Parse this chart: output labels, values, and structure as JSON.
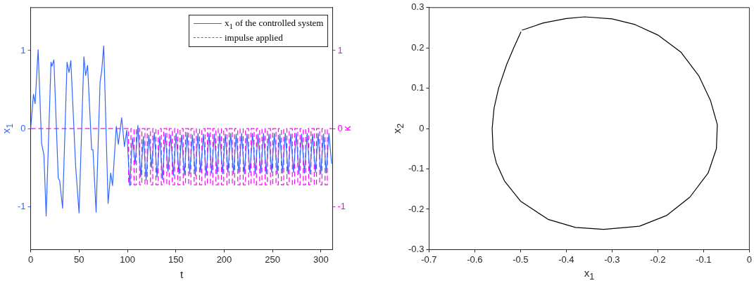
{
  "chart_data": [
    {
      "type": "line",
      "xlabel": "t",
      "ylabel": "x$_{1}$",
      "y2label": "κ",
      "legend": "top right",
      "xlim": [
        0,
        312
      ],
      "xticks": [
        0,
        50,
        100,
        150,
        200,
        250,
        300
      ],
      "ylim": [
        -1.55,
        1.55
      ],
      "yticks": [
        -1,
        0,
        1
      ],
      "y2lim": [
        -1.55,
        1.55
      ],
      "y2ticks": [
        -1,
        0,
        1
      ],
      "series": [
        {
          "name": "x$_{1}$ of the controlled system",
          "color": "#3366ff",
          "line_style": "solid",
          "x": [
            0,
            2.9,
            4.6,
            7.7,
            11.3,
            13.7,
            16,
            21,
            22,
            24,
            28.5,
            30,
            33,
            37.6,
            39.6,
            41.5,
            46.5,
            50,
            55,
            56.8,
            58.8,
            63,
            64.4,
            67.6,
            71.7,
            73.4,
            75.5,
            80,
            82.7,
            84.6,
            88.5,
            90.6,
            94,
            96.9,
            99.3,
            102.4,
            105.2,
            108.0,
            110.8,
            113.7,
            116.5,
            119.3,
            122.1,
            125.0,
            127.8,
            130.6,
            133.4,
            136.2,
            139.0,
            141.9,
            144.7,
            147.5,
            150.3,
            153.2,
            156.0,
            158.8,
            161.6,
            164.4,
            167.2,
            170.1,
            172.9,
            175.7,
            178.5,
            181.4,
            184.2,
            187.0,
            189.8,
            192.6,
            195.4,
            198.3,
            201.1,
            203.9,
            206.7,
            209.6,
            212.4,
            215.2,
            218.0,
            220.8,
            223.6,
            226.5,
            229.3,
            232.1,
            234.9,
            237.8,
            240.6,
            243.4,
            246.2,
            249.0,
            251.8,
            254.7,
            257.5,
            260.3,
            263.1,
            266.0,
            268.8,
            271.6,
            274.4,
            277.2,
            280.0,
            282.9,
            285.7,
            288.5,
            291.3,
            294.2,
            297.0,
            299.8,
            302.6,
            305.4,
            308.2,
            311
          ],
          "values": [
            0,
            0.44,
            0.32,
            1.01,
            -0.19,
            -0.34,
            -1.12,
            0.85,
            0.8,
            0.88,
            -0.63,
            -0.67,
            -1.02,
            0.85,
            0.72,
            0.87,
            -0.49,
            -1.08,
            0.92,
            0.68,
            0.81,
            -0.27,
            -0.27,
            -1.07,
            0.59,
            0.74,
            1.06,
            -0.96,
            -0.57,
            -0.73,
            0.03,
            -0.2,
            0.14,
            -0.23,
            -0.02,
            -0.73,
            -0.12,
            -0.45,
            0.04,
            -0.62,
            -0.1,
            -0.66,
            -0.08,
            -0.5,
            -0.05,
            -0.62,
            -0.1,
            -0.65,
            -0.06,
            -0.55,
            -0.08,
            -0.6,
            -0.06,
            -0.58,
            -0.08,
            -0.6,
            -0.05,
            -0.58,
            -0.08,
            -0.6,
            -0.06,
            -0.56,
            -0.07,
            -0.6,
            -0.06,
            -0.57,
            -0.07,
            -0.58,
            -0.06,
            -0.58,
            -0.07,
            -0.56,
            -0.06,
            -0.58,
            -0.07,
            -0.57,
            -0.06,
            -0.58,
            -0.07,
            -0.56,
            -0.06,
            -0.58,
            -0.07,
            -0.57,
            -0.06,
            -0.58,
            -0.07,
            -0.56,
            -0.06,
            -0.58,
            -0.07,
            -0.57,
            -0.06,
            -0.58,
            -0.07,
            -0.56,
            -0.06,
            -0.58,
            -0.07,
            -0.57,
            -0.06,
            -0.58,
            -0.07,
            -0.56,
            -0.06,
            -0.58,
            -0.07,
            -0.57,
            -0.06,
            -0.45
          ]
        },
        {
          "name": "impulse applied",
          "color": "#ff00ff",
          "axis": "y2",
          "line_style": "dashed",
          "x": [
            0,
            101.2,
            101.2,
            103.6,
            103.6,
            106.8,
            106.8,
            109.2,
            109.2,
            112.5,
            112.5,
            114.9,
            114.9,
            118.1,
            118.1,
            120.5,
            120.5,
            123.8,
            123.8,
            126.2,
            126.2,
            129.4,
            129.4,
            131.8,
            131.8,
            135.0,
            135.0,
            137.4,
            137.4,
            140.7,
            140.7,
            143.1,
            143.1,
            146.3,
            146.3,
            148.7,
            148.7,
            152.0,
            152.0,
            154.4,
            154.4,
            157.6,
            157.6,
            160.0,
            160.0,
            163.2,
            163.2,
            165.6,
            165.6,
            168.9,
            168.9,
            171.3,
            171.3,
            174.5,
            174.5,
            176.9,
            176.9,
            180.2,
            180.2,
            182.6,
            182.6,
            185.8,
            185.8,
            188.2,
            188.2,
            191.4,
            191.4,
            193.8,
            193.8,
            197.1,
            197.1,
            199.5,
            199.5,
            202.7,
            202.7,
            205.1,
            205.1,
            208.4,
            208.4,
            210.8,
            210.8,
            214.0,
            214.0,
            216.4,
            216.4,
            219.6,
            219.6,
            222.0,
            222.0,
            225.3,
            225.3,
            227.7,
            227.7,
            230.9,
            230.9,
            233.3,
            233.3,
            236.6,
            236.6,
            239.0,
            239.0,
            242.2,
            242.2,
            244.6,
            244.6,
            247.8,
            247.8,
            250.2,
            250.2,
            253.5,
            253.5,
            255.9,
            255.9,
            259.1,
            259.1,
            261.5,
            261.5,
            264.8,
            264.8,
            267.2,
            267.2,
            270.4,
            270.4,
            272.8,
            272.8,
            276.0,
            276.0,
            278.4,
            278.4,
            281.7,
            281.7,
            284.1,
            284.1,
            287.3,
            287.3,
            289.7,
            289.7,
            293.0,
            293.0,
            295.4,
            295.4,
            298.6,
            298.6,
            301.0,
            301.0,
            304.2,
            304.2,
            306.6,
            306.6,
            311.5
          ],
          "values": [
            0,
            0,
            -0.72,
            -0.72,
            0,
            0,
            -0.72,
            -0.72,
            0,
            0,
            -0.72,
            -0.72,
            0,
            0,
            -0.72,
            -0.72,
            0,
            0,
            -0.72,
            -0.72,
            0,
            0,
            -0.72,
            -0.72,
            0,
            0,
            -0.72,
            -0.72,
            0,
            0,
            -0.72,
            -0.72,
            0,
            0,
            -0.72,
            -0.72,
            0,
            0,
            -0.72,
            -0.72,
            0,
            0,
            -0.72,
            -0.72,
            0,
            0,
            -0.72,
            -0.72,
            0,
            0,
            -0.72,
            -0.72,
            0,
            0,
            -0.72,
            -0.72,
            0,
            0,
            -0.72,
            -0.72,
            0,
            0,
            -0.72,
            -0.72,
            0,
            0,
            -0.72,
            -0.72,
            0,
            0,
            -0.72,
            -0.72,
            0,
            0,
            -0.72,
            -0.72,
            0,
            0,
            -0.72,
            -0.72,
            0,
            0,
            -0.72,
            -0.72,
            0,
            0,
            -0.72,
            -0.72,
            0,
            0,
            -0.72,
            -0.72,
            0,
            0,
            -0.72,
            -0.72,
            0,
            0,
            -0.72,
            -0.72,
            0,
            0,
            -0.72,
            -0.72,
            0,
            0,
            -0.72,
            -0.72,
            0,
            0,
            -0.72,
            -0.72,
            0,
            0,
            -0.72,
            -0.72,
            0,
            0,
            -0.72,
            -0.72,
            0,
            0,
            -0.72,
            -0.72,
            0,
            0,
            -0.72,
            -0.72,
            0,
            0,
            -0.72,
            -0.72,
            0,
            0,
            -0.72,
            -0.72,
            0,
            0,
            -0.72,
            -0.72,
            0,
            0,
            -0.72,
            -0.72,
            0,
            0,
            -0.72,
            -0.72,
            0,
            0
          ]
        }
      ]
    },
    {
      "type": "line",
      "xlabel": "x$_{1}$",
      "ylabel": "x$_{2}$",
      "xlim": [
        -0.7,
        0
      ],
      "xticks": [
        -0.7,
        -0.6,
        -0.5,
        -0.4,
        -0.3,
        -0.2,
        -0.1,
        0
      ],
      "ylim": [
        -0.3,
        0.3
      ],
      "yticks": [
        -0.3,
        -0.2,
        -0.1,
        0,
        0.1,
        0.2,
        0.3
      ],
      "series": [
        {
          "color": "#000000",
          "x": [
            -0.497,
            -0.45,
            -0.4,
            -0.36,
            -0.3,
            -0.25,
            -0.2,
            -0.15,
            -0.11,
            -0.085,
            -0.07,
            -0.072,
            -0.09,
            -0.13,
            -0.18,
            -0.24,
            -0.318,
            -0.38,
            -0.44,
            -0.5,
            -0.535,
            -0.553,
            -0.56,
            -0.562,
            -0.558,
            -0.548,
            -0.53,
            -0.515,
            -0.499
          ],
          "values": [
            0.244,
            0.262,
            0.273,
            0.277,
            0.272,
            0.258,
            0.232,
            0.19,
            0.13,
            0.07,
            0.01,
            -0.05,
            -0.11,
            -0.17,
            -0.215,
            -0.242,
            -0.25,
            -0.245,
            -0.225,
            -0.18,
            -0.13,
            -0.085,
            -0.052,
            0,
            0.05,
            0.1,
            0.16,
            0.2,
            0.24
          ]
        }
      ]
    }
  ]
}
